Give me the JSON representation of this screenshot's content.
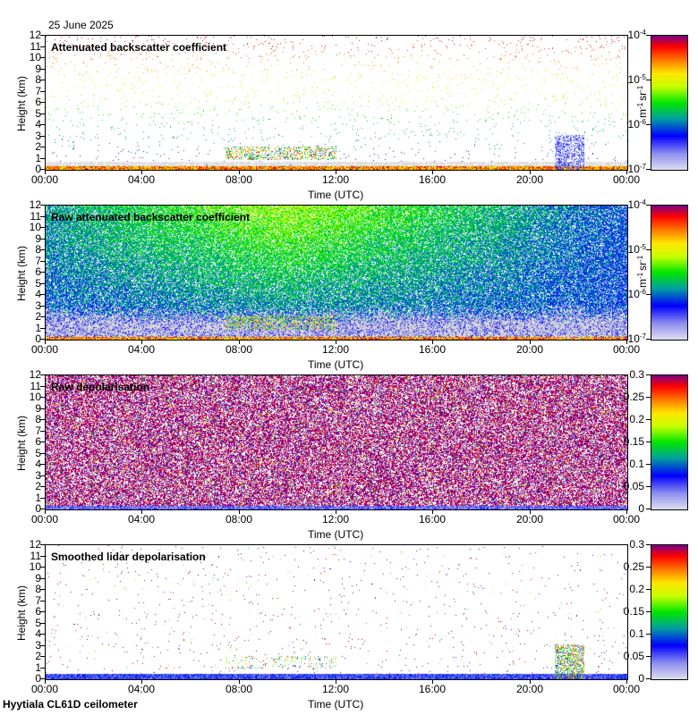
{
  "date": "25 June 2025",
  "footer": "Hyytiala CL61D ceilometer",
  "colors": {
    "purple": "#800080",
    "red": "#ff0000",
    "orange": "#ff8000",
    "yellow": "#ffff00",
    "green": "#00ff00",
    "teal": "#00a0a0",
    "blue": "#0000ff",
    "lavender": "#c8c8f0",
    "gray": "#dcdcdc"
  },
  "chart_data": [
    {
      "type": "heatmap",
      "title": "Attenuated backscatter coefficient",
      "xlabel": "Time (UTC)",
      "ylabel": "Height (km)",
      "xticks": [
        "00:00",
        "04:00",
        "08:00",
        "12:00",
        "16:00",
        "20:00",
        "00:00"
      ],
      "yticks": [
        "0",
        "1",
        "2",
        "3",
        "4",
        "5",
        "6",
        "7",
        "8",
        "9",
        "10",
        "11",
        "12"
      ],
      "ylim": [
        0,
        12
      ],
      "colorbar": {
        "scale": "log",
        "range": [
          1e-07,
          0.0001
        ],
        "ticks": [
          {
            "base": "10",
            "exp": "-4"
          },
          {
            "base": "10",
            "exp": "-5"
          },
          {
            "base": "10",
            "exp": "-6"
          },
          {
            "base": "10",
            "exp": "-7"
          }
        ],
        "label_parts": [
          "m",
          "-1",
          "sr",
          "-1"
        ]
      },
      "features": "sparse noise increasing with height; boundary layer below 0.5 km; low clouds 1-2 km 07:30-12:00; cloud 21:00-22:00 up to 3 km"
    },
    {
      "type": "heatmap",
      "title": "Raw attenuated backscatter coefficient",
      "xlabel": "Time (UTC)",
      "ylabel": "Height (km)",
      "xticks": [
        "00:00",
        "04:00",
        "08:00",
        "12:00",
        "16:00",
        "20:00",
        "00:00"
      ],
      "yticks": [
        "0",
        "1",
        "2",
        "3",
        "4",
        "5",
        "6",
        "7",
        "8",
        "9",
        "10",
        "11",
        "12"
      ],
      "ylim": [
        0,
        12
      ],
      "colorbar": {
        "scale": "log",
        "range": [
          1e-07,
          0.0001
        ],
        "ticks": [
          {
            "base": "10",
            "exp": "-4"
          },
          {
            "base": "10",
            "exp": "-5"
          },
          {
            "base": "10",
            "exp": "-6"
          },
          {
            "base": "10",
            "exp": "-7"
          }
        ],
        "label_parts": [
          "m",
          "-1",
          "sr",
          "-1"
        ]
      },
      "features": "dense noise, blue above 3 km, green aloft midday"
    },
    {
      "type": "heatmap",
      "title": "Raw depolarisation",
      "xlabel": "Time (UTC)",
      "ylabel": "Height (km)",
      "xticks": [
        "00:00",
        "04:00",
        "08:00",
        "12:00",
        "16:00",
        "20:00",
        "00:00"
      ],
      "yticks": [
        "0",
        "1",
        "2",
        "3",
        "4",
        "5",
        "6",
        "7",
        "8",
        "9",
        "10",
        "11",
        "12"
      ],
      "ylim": [
        0,
        12
      ],
      "colorbar": {
        "scale": "linear",
        "range": [
          0,
          0.3
        ],
        "ticks": [
          "0.3",
          "0.25",
          "0.2",
          "0.15",
          "0.1",
          "0.05",
          "0"
        ]
      },
      "features": "dense noise throughout, low values near surface"
    },
    {
      "type": "heatmap",
      "title": "Smoothed lidar depolarisation",
      "xlabel": "Time (UTC)",
      "ylabel": "Height (km)",
      "xticks": [
        "00:00",
        "04:00",
        "08:00",
        "12:00",
        "16:00",
        "20:00",
        "00:00"
      ],
      "yticks": [
        "0",
        "1",
        "2",
        "3",
        "4",
        "5",
        "6",
        "7",
        "8",
        "9",
        "10",
        "11",
        "12"
      ],
      "ylim": [
        0,
        12
      ],
      "colorbar": {
        "scale": "linear",
        "range": [
          0,
          0.3
        ],
        "ticks": [
          "0.3",
          "0.25",
          "0.2",
          "0.15",
          "0.1",
          "0.05",
          "0"
        ]
      },
      "features": "sparse speckle, low depolarisation boundary layer, cloud 21:00-22:00"
    }
  ]
}
